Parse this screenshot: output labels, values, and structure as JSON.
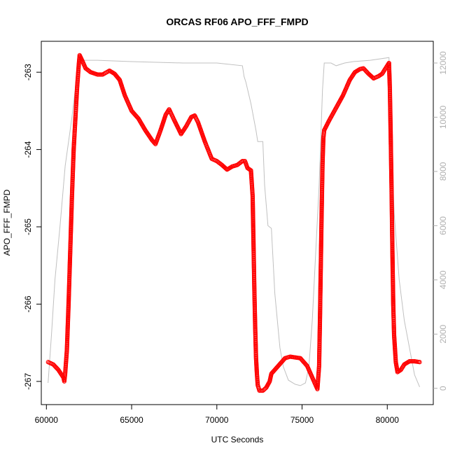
{
  "chart_data": {
    "type": "scatter",
    "title": "ORCAS RF06 APO_FFF_FMPD",
    "xlabel": "UTC Seconds",
    "ylabel": "APO_FFF_FMPD",
    "xlim": [
      59700,
      82700
    ],
    "ylim": [
      -267.3,
      -262.6
    ],
    "x_ticks": [
      60000,
      65000,
      70000,
      75000,
      80000
    ],
    "x_tick_labels": [
      "60000",
      "65000",
      "70000",
      "75000",
      "80000"
    ],
    "y_ticks": [
      -267,
      -266,
      -265,
      -264,
      -263
    ],
    "y_tick_labels": [
      "-267",
      "-266",
      "-265",
      "-264",
      "-263"
    ],
    "y2lim": [
      -600,
      12800
    ],
    "y2_ticks": [
      0,
      2000,
      4000,
      6000,
      8000,
      10000,
      12000
    ],
    "y2_tick_labels": [
      "0",
      "2000",
      "4000",
      "6000",
      "8000",
      "10000",
      "12000"
    ],
    "series": [
      {
        "color": "#ff0000",
        "marker": "open-circle",
        "axis": "left",
        "points": [
          [
            60100,
            -266.75
          ],
          [
            60400,
            -266.78
          ],
          [
            60700,
            -266.85
          ],
          [
            61000,
            -266.95
          ],
          [
            61050,
            -267.0
          ],
          [
            61100,
            -266.9
          ],
          [
            61200,
            -266.6
          ],
          [
            61300,
            -266.0
          ],
          [
            61400,
            -265.3
          ],
          [
            61500,
            -264.6
          ],
          [
            61600,
            -264.0
          ],
          [
            61700,
            -263.6
          ],
          [
            61800,
            -263.2
          ],
          [
            61900,
            -262.9
          ],
          [
            61950,
            -262.78
          ],
          [
            62100,
            -262.85
          ],
          [
            62300,
            -262.95
          ],
          [
            62600,
            -263.0
          ],
          [
            63000,
            -263.03
          ],
          [
            63300,
            -263.03
          ],
          [
            63700,
            -262.98
          ],
          [
            64000,
            -263.02
          ],
          [
            64300,
            -263.1
          ],
          [
            64600,
            -263.3
          ],
          [
            65000,
            -263.5
          ],
          [
            65400,
            -263.6
          ],
          [
            65800,
            -263.75
          ],
          [
            66200,
            -263.88
          ],
          [
            66400,
            -263.93
          ],
          [
            66700,
            -263.75
          ],
          [
            67000,
            -263.55
          ],
          [
            67200,
            -263.48
          ],
          [
            67500,
            -263.62
          ],
          [
            67900,
            -263.8
          ],
          [
            68200,
            -263.7
          ],
          [
            68500,
            -263.58
          ],
          [
            68700,
            -263.56
          ],
          [
            68900,
            -263.65
          ],
          [
            69300,
            -263.9
          ],
          [
            69700,
            -264.12
          ],
          [
            70000,
            -264.15
          ],
          [
            70300,
            -264.2
          ],
          [
            70600,
            -264.26
          ],
          [
            70900,
            -264.22
          ],
          [
            71200,
            -264.2
          ],
          [
            71500,
            -264.15
          ],
          [
            71650,
            -264.15
          ],
          [
            71800,
            -264.24
          ],
          [
            72000,
            -264.27
          ],
          [
            72100,
            -264.6
          ],
          [
            72150,
            -265.2
          ],
          [
            72200,
            -265.8
          ],
          [
            72250,
            -266.3
          ],
          [
            72300,
            -266.7
          ],
          [
            72350,
            -266.9
          ],
          [
            72400,
            -267.05
          ],
          [
            72500,
            -267.12
          ],
          [
            72700,
            -267.12
          ],
          [
            72900,
            -267.08
          ],
          [
            73100,
            -267.0
          ],
          [
            73200,
            -266.9
          ],
          [
            73400,
            -266.85
          ],
          [
            73600,
            -266.8
          ],
          [
            73800,
            -266.75
          ],
          [
            74000,
            -266.7
          ],
          [
            74300,
            -266.68
          ],
          [
            74600,
            -266.69
          ],
          [
            74900,
            -266.7
          ],
          [
            75100,
            -266.75
          ],
          [
            75300,
            -266.8
          ],
          [
            75500,
            -266.9
          ],
          [
            75700,
            -267.0
          ],
          [
            75800,
            -267.05
          ],
          [
            75900,
            -267.1
          ],
          [
            76000,
            -266.8
          ],
          [
            76050,
            -266.2
          ],
          [
            76100,
            -265.5
          ],
          [
            76150,
            -264.8
          ],
          [
            76200,
            -264.2
          ],
          [
            76250,
            -263.85
          ],
          [
            76300,
            -263.75
          ],
          [
            76600,
            -263.62
          ],
          [
            76900,
            -263.5
          ],
          [
            77200,
            -263.38
          ],
          [
            77400,
            -263.3
          ],
          [
            77600,
            -263.2
          ],
          [
            77800,
            -263.1
          ],
          [
            78100,
            -263.0
          ],
          [
            78400,
            -262.96
          ],
          [
            78600,
            -262.95
          ],
          [
            78900,
            -263.02
          ],
          [
            79200,
            -263.08
          ],
          [
            79500,
            -263.05
          ],
          [
            79700,
            -263.02
          ],
          [
            79900,
            -262.95
          ],
          [
            80100,
            -262.88
          ],
          [
            80150,
            -263.2
          ],
          [
            80200,
            -263.8
          ],
          [
            80250,
            -264.5
          ],
          [
            80300,
            -265.3
          ],
          [
            80350,
            -266.0
          ],
          [
            80400,
            -266.4
          ],
          [
            80500,
            -266.75
          ],
          [
            80600,
            -266.88
          ],
          [
            80800,
            -266.85
          ],
          [
            81000,
            -266.78
          ],
          [
            81300,
            -266.74
          ],
          [
            81600,
            -266.74
          ],
          [
            81900,
            -266.75
          ]
        ]
      },
      {
        "color": "#c0c0c0",
        "marker": "line",
        "axis": "right",
        "points": [
          [
            60100,
            200
          ],
          [
            60300,
            2000
          ],
          [
            60500,
            4000
          ],
          [
            60800,
            6000
          ],
          [
            61100,
            8200
          ],
          [
            61500,
            10000
          ],
          [
            61800,
            11600
          ],
          [
            62000,
            12100
          ],
          [
            63000,
            12100
          ],
          [
            65000,
            12050
          ],
          [
            68000,
            12000
          ],
          [
            70000,
            12000
          ],
          [
            71500,
            11900
          ],
          [
            71600,
            11500
          ],
          [
            71700,
            11300
          ],
          [
            72000,
            10500
          ],
          [
            72300,
            9500
          ],
          [
            72400,
            9100
          ],
          [
            72700,
            9100
          ],
          [
            72800,
            7500
          ],
          [
            73000,
            6000
          ],
          [
            73200,
            5900
          ],
          [
            73400,
            3500
          ],
          [
            73700,
            1500
          ],
          [
            73900,
            800
          ],
          [
            74200,
            300
          ],
          [
            74600,
            150
          ],
          [
            74900,
            100
          ],
          [
            75200,
            200
          ],
          [
            75400,
            800
          ],
          [
            75600,
            2500
          ],
          [
            75800,
            5000
          ],
          [
            76000,
            7500
          ],
          [
            76200,
            11000
          ],
          [
            76300,
            12000
          ],
          [
            76700,
            12000
          ],
          [
            77000,
            11900
          ],
          [
            77500,
            12000
          ],
          [
            78000,
            12050
          ],
          [
            79000,
            12100
          ],
          [
            80100,
            12200
          ],
          [
            80200,
            10000
          ],
          [
            80400,
            6500
          ],
          [
            80700,
            4000
          ],
          [
            81000,
            2500
          ],
          [
            81300,
            1500
          ],
          [
            81600,
            500
          ],
          [
            81900,
            50
          ]
        ]
      }
    ]
  }
}
